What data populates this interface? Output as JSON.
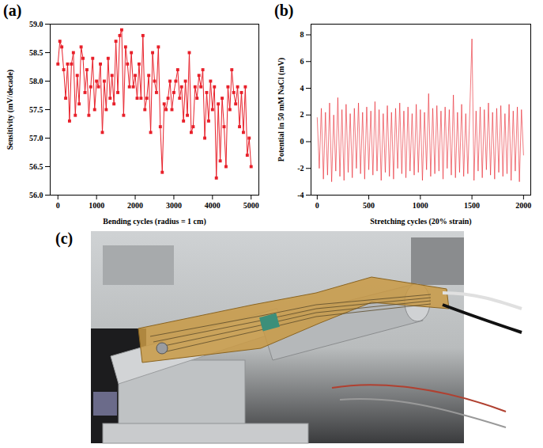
{
  "chart_data": [
    {
      "type": "line",
      "panel_label": "(a)",
      "marker": "square",
      "color": "#e8202a",
      "x_label": "Bending cycles (radius = 1 cm)",
      "y_label": "Sensitivity (mV/decade)",
      "xlim": [
        -200,
        5200
      ],
      "xticks": [
        0,
        1000,
        2000,
        3000,
        4000,
        5000
      ],
      "ylim": [
        56,
        59
      ],
      "yticks": [
        {
          "value": 56,
          "label": "56.0"
        },
        56.5,
        {
          "value": 57,
          "label": "57.0"
        },
        57.5,
        {
          "value": 58,
          "label": "58.0"
        },
        58.5,
        {
          "value": 59,
          "label": "59.0"
        }
      ],
      "x": [
        0,
        50,
        100,
        150,
        200,
        250,
        300,
        350,
        400,
        450,
        500,
        550,
        600,
        650,
        700,
        750,
        800,
        850,
        900,
        950,
        1000,
        1050,
        1100,
        1150,
        1200,
        1250,
        1300,
        1350,
        1400,
        1450,
        1500,
        1550,
        1600,
        1650,
        1700,
        1750,
        1800,
        1850,
        1900,
        1950,
        2000,
        2050,
        2100,
        2150,
        2200,
        2250,
        2300,
        2350,
        2400,
        2450,
        2500,
        2550,
        2600,
        2650,
        2700,
        2750,
        2800,
        2850,
        2900,
        2950,
        3000,
        3050,
        3100,
        3150,
        3200,
        3250,
        3300,
        3350,
        3400,
        3450,
        3500,
        3550,
        3600,
        3650,
        3700,
        3750,
        3800,
        3850,
        3900,
        3950,
        4000,
        4050,
        4100,
        4150,
        4200,
        4250,
        4300,
        4350,
        4400,
        4450,
        4500,
        4550,
        4600,
        4650,
        4700,
        4750,
        4800,
        4850,
        4900,
        4950,
        5000
      ],
      "values": [
        58.3,
        58.7,
        58.6,
        58.2,
        57.7,
        58.3,
        57.3,
        58.3,
        58.5,
        57.4,
        58.1,
        57.6,
        58.6,
        58.4,
        57.8,
        58.2,
        57.4,
        57.9,
        58.4,
        57.5,
        58.0,
        57.9,
        58.3,
        57.1,
        58.0,
        57.5,
        58.4,
        57.7,
        58.1,
        57.6,
        58.7,
        57.8,
        58.8,
        58.9,
        57.4,
        58.6,
        58.3,
        57.9,
        58.5,
        57.9,
        58.1,
        57.7,
        58.3,
        57.7,
        58.8,
        57.5,
        57.7,
        58.1,
        57.1,
        58.5,
        58.0,
        57.8,
        58.6,
        57.2,
        56.4,
        57.6,
        57.5,
        57.7,
        58.0,
        57.5,
        57.8,
        58.0,
        58.2,
        57.7,
        57.9,
        57.3,
        58.0,
        57.4,
        58.5,
        57.1,
        57.2,
        57.9,
        57.7,
        58.1,
        57.9,
        58.2,
        57.0,
        57.8,
        57.3,
        58.0,
        57.5,
        57.9,
        56.3,
        57.6,
        56.6,
        57.7,
        57.2,
        56.5,
        57.9,
        57.5,
        58.2,
        57.8,
        57.6,
        57.9,
        57.2,
        57.8,
        57.1,
        57.9,
        56.7,
        57.0,
        56.5
      ]
    },
    {
      "type": "line",
      "panel_label": "(b)",
      "color": "#e8202a",
      "x_label": "Stretching cycles (20% strain)",
      "y_label": "Potential in 50 mM NaCl (mV)",
      "xlim": [
        -60,
        2070
      ],
      "xticks": [
        0,
        500,
        1000,
        1500,
        2000
      ],
      "ylim": [
        -4,
        8.8
      ],
      "yticks": [
        -4,
        -2,
        0,
        2,
        4,
        6,
        8
      ],
      "x": [
        0,
        20,
        40,
        60,
        80,
        100,
        120,
        140,
        160,
        180,
        200,
        220,
        240,
        260,
        280,
        300,
        320,
        340,
        360,
        380,
        400,
        420,
        440,
        460,
        480,
        500,
        520,
        540,
        560,
        580,
        600,
        620,
        640,
        660,
        680,
        700,
        720,
        740,
        760,
        780,
        800,
        820,
        840,
        860,
        880,
        900,
        920,
        940,
        960,
        980,
        1000,
        1020,
        1040,
        1060,
        1080,
        1100,
        1120,
        1140,
        1160,
        1180,
        1200,
        1220,
        1240,
        1260,
        1280,
        1300,
        1320,
        1340,
        1360,
        1380,
        1400,
        1420,
        1440,
        1460,
        1480,
        1500,
        1520,
        1540,
        1560,
        1580,
        1600,
        1620,
        1640,
        1660,
        1680,
        1700,
        1720,
        1740,
        1760,
        1780,
        1800,
        1820,
        1840,
        1860,
        1880,
        1900,
        1920,
        1940,
        1960,
        1980,
        2000
      ],
      "values": [
        1.8,
        -2.0,
        2.5,
        -2.8,
        2.2,
        -2.5,
        2.9,
        -3.0,
        2.0,
        -2.2,
        3.3,
        -2.6,
        2.4,
        -2.9,
        2.8,
        -2.3,
        2.1,
        -2.7,
        2.5,
        -2.0,
        2.9,
        -2.4,
        2.2,
        -2.8,
        2.6,
        -2.1,
        2.3,
        -2.5,
        3.0,
        -2.2,
        2.4,
        -2.9,
        2.1,
        -2.3,
        2.7,
        -2.6,
        2.2,
        -2.8,
        2.5,
        -2.0,
        2.9,
        -2.4,
        2.3,
        -2.7,
        2.6,
        -2.2,
        2.1,
        -2.5,
        2.8,
        -2.3,
        2.4,
        -2.9,
        2.2,
        -2.1,
        3.6,
        -2.6,
        2.5,
        -2.4,
        2.7,
        -2.2,
        2.3,
        -2.8,
        2.6,
        -2.0,
        2.4,
        -2.5,
        3.5,
        -2.7,
        2.2,
        -2.3,
        2.8,
        -2.6,
        2.1,
        -2.4,
        2.5,
        7.7,
        -2.9,
        2.3,
        -2.2,
        2.6,
        -2.7,
        2.4,
        -2.1,
        2.9,
        -2.5,
        2.2,
        -2.8,
        2.5,
        -2.3,
        2.7,
        -2.6,
        2.1,
        -2.4,
        2.8,
        -2.9,
        2.3,
        -2.2,
        2.6,
        -3.0,
        2.4,
        -1.0
      ]
    }
  ],
  "photo": {
    "panel_label": "(c)"
  }
}
